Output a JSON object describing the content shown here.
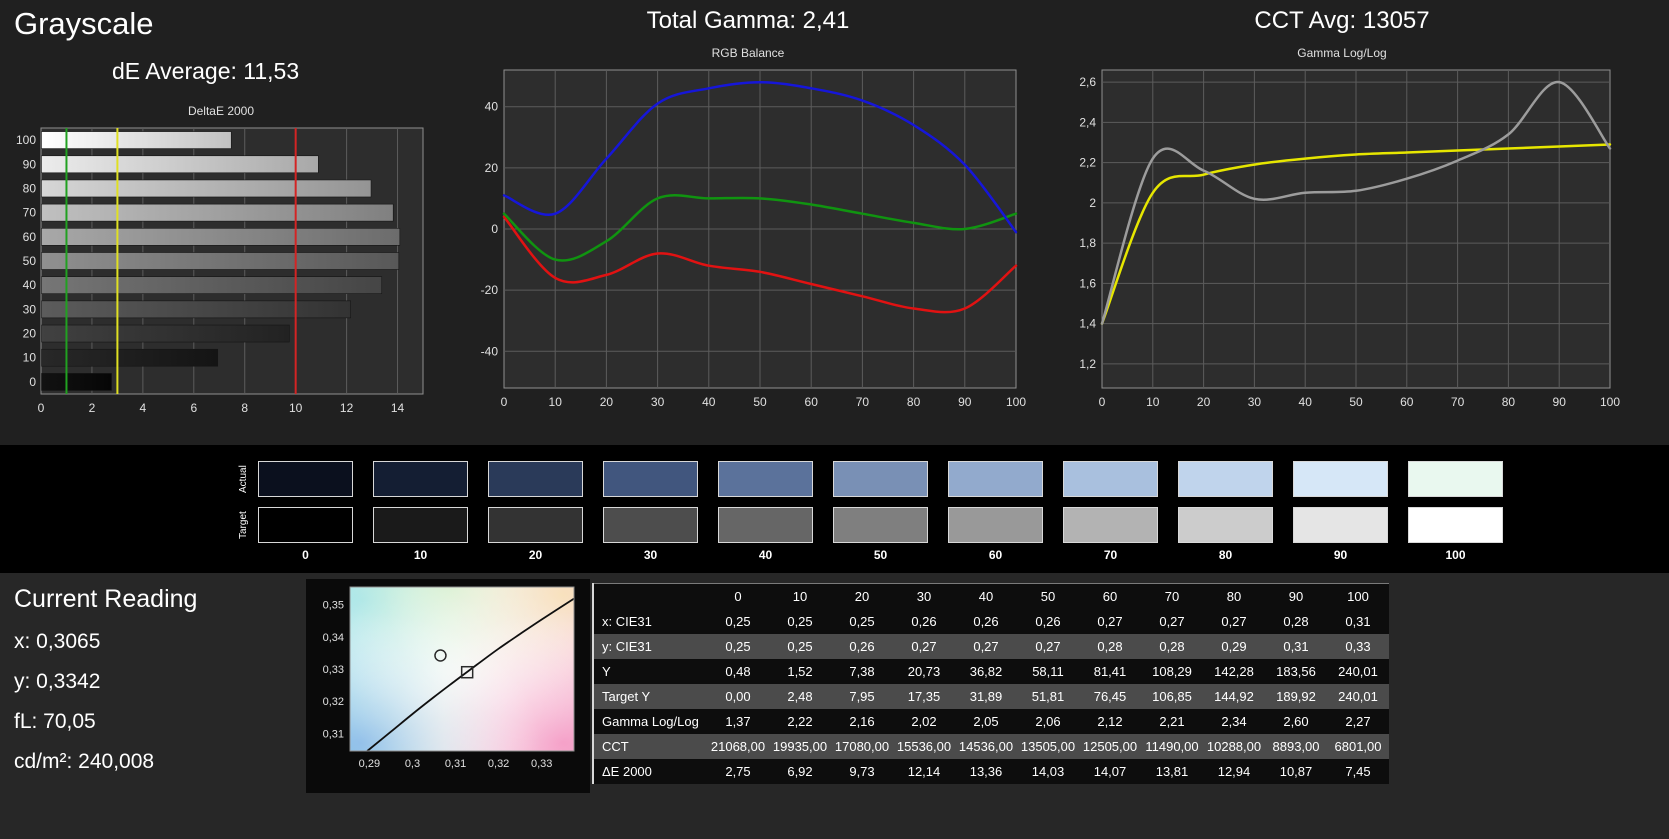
{
  "header": {
    "title": "Grayscale",
    "de_average": "dE Average: 11,53",
    "total_gamma": "Total Gamma: 2,41",
    "cct_avg": "CCT Avg: 13057"
  },
  "chart_data": [
    {
      "id": "deltae",
      "type": "bar",
      "orientation": "horizontal",
      "title": "DeltaE 2000",
      "categories": [
        "100",
        "90",
        "80",
        "70",
        "60",
        "50",
        "40",
        "30",
        "20",
        "10",
        "0"
      ],
      "values": [
        7.45,
        10.87,
        12.94,
        13.81,
        14.07,
        14.03,
        13.36,
        12.14,
        9.73,
        6.92,
        2.75
      ],
      "xlim": [
        0,
        15
      ],
      "x_ticks": [
        0,
        2,
        4,
        6,
        8,
        10,
        12,
        14
      ],
      "grid": true,
      "reference_lines": [
        {
          "x": 1,
          "color": "#21a121"
        },
        {
          "x": 3,
          "color": "#e0e022"
        },
        {
          "x": 10,
          "color": "#d32424"
        }
      ],
      "bar_gradients": [
        [
          "#ffffff",
          "#c2c2c2"
        ],
        [
          "#ececec",
          "#a8a8a8"
        ],
        [
          "#d6d6d6",
          "#949494"
        ],
        [
          "#c0c0c0",
          "#808080"
        ],
        [
          "#a8a8a8",
          "#6c6c6c"
        ],
        [
          "#909090",
          "#585858"
        ],
        [
          "#767676",
          "#454545"
        ],
        [
          "#5c5c5c",
          "#333333"
        ],
        [
          "#414141",
          "#222222"
        ],
        [
          "#282828",
          "#141414"
        ],
        [
          "#121212",
          "#060606"
        ]
      ]
    },
    {
      "id": "rgb_balance",
      "type": "line",
      "title": "RGB Balance",
      "x": [
        0,
        10,
        20,
        30,
        40,
        50,
        60,
        70,
        80,
        90,
        100
      ],
      "ylim": [
        -52,
        52
      ],
      "y_ticks": [
        -40,
        -20,
        0,
        20,
        40
      ],
      "y_tick_labels": [
        "-40",
        "-20",
        "0",
        "20",
        "40"
      ],
      "grid": true,
      "series": [
        {
          "name": "red",
          "color": "#e11212",
          "values": [
            4,
            -16,
            -15,
            -8,
            -12,
            -14,
            -18,
            -22,
            -26,
            -26,
            -12
          ]
        },
        {
          "name": "green",
          "color": "#109410",
          "values": [
            5,
            -10,
            -4,
            10,
            10,
            10,
            8,
            5,
            2,
            0,
            5
          ]
        },
        {
          "name": "blue",
          "color": "#1616d9",
          "values": [
            11,
            5,
            23,
            41,
            46,
            48,
            46,
            42,
            34,
            21,
            -1
          ]
        }
      ]
    },
    {
      "id": "gamma_loglog",
      "type": "line",
      "title": "Gamma Log/Log",
      "x": [
        0,
        10,
        20,
        30,
        40,
        50,
        60,
        70,
        80,
        90,
        100
      ],
      "ylim": [
        1.08,
        2.66
      ],
      "y_ticks": [
        1.2,
        1.4,
        1.6,
        1.8,
        2.0,
        2.2,
        2.4,
        2.6
      ],
      "y_tick_labels": [
        "1,2",
        "1,4",
        "1,6",
        "1,8",
        "2",
        "2,2",
        "2,4",
        "2,6"
      ],
      "grid": true,
      "series": [
        {
          "name": "target",
          "color": "#e6e600",
          "values": [
            1.4,
            2.05,
            2.14,
            2.19,
            2.22,
            2.24,
            2.25,
            2.26,
            2.27,
            2.28,
            2.29
          ]
        },
        {
          "name": "measured",
          "color": "#9c9c9c",
          "values": [
            1.4,
            2.22,
            2.16,
            2.02,
            2.05,
            2.06,
            2.12,
            2.21,
            2.34,
            2.6,
            2.27
          ]
        }
      ]
    },
    {
      "id": "cie_diagram",
      "type": "scatter",
      "title": "CIE chromaticity detail",
      "xlim": [
        0.2855,
        0.3375
      ],
      "ylim": [
        0.3045,
        0.3555
      ],
      "x_ticks": [
        0.29,
        0.3,
        0.31,
        0.32,
        0.33
      ],
      "x_tick_labels": [
        "0,29",
        "0,3",
        "0,31",
        "0,32",
        "0,33"
      ],
      "y_ticks": [
        0.31,
        0.32,
        0.33,
        0.34,
        0.35
      ],
      "y_tick_labels": [
        "0,31",
        "0,32",
        "0,33",
        "0,34",
        "0,35"
      ],
      "markers": [
        {
          "shape": "circle",
          "name": "measured-point",
          "x": 0.3065,
          "y": 0.3342
        },
        {
          "shape": "square",
          "name": "target-point",
          "x": 0.3127,
          "y": 0.329
        }
      ],
      "locus": [
        [
          0.2895,
          0.3045
        ],
        [
          0.295,
          0.3105
        ],
        [
          0.3,
          0.316
        ],
        [
          0.305,
          0.3213
        ],
        [
          0.31,
          0.3264
        ],
        [
          0.315,
          0.3314
        ],
        [
          0.32,
          0.3363
        ],
        [
          0.325,
          0.3409
        ],
        [
          0.33,
          0.3454
        ],
        [
          0.3375,
          0.3519
        ]
      ]
    }
  ],
  "swatches": {
    "actual_label": "Actual",
    "target_label": "Target",
    "levels": [
      "0",
      "10",
      "20",
      "30",
      "40",
      "50",
      "60",
      "70",
      "80",
      "90",
      "100"
    ],
    "actual_colors": [
      "#0b101e",
      "#141e33",
      "#2a3a59",
      "#41567e",
      "#5b729b",
      "#7990b5",
      "#92aacd",
      "#a9c0de",
      "#c0d4ec",
      "#d6e7f7",
      "#e9f8ef"
    ],
    "target_colors": [
      "#000000",
      "#1a1a1a",
      "#333333",
      "#4d4d4d",
      "#666666",
      "#7f7f7f",
      "#999999",
      "#b3b3b3",
      "#cccccc",
      "#e5e5e5",
      "#ffffff"
    ]
  },
  "current_reading": {
    "title": "Current Reading",
    "x": "x: 0,3065",
    "y": "y: 0,3342",
    "fl": "fL: 70,05",
    "cdm2": "cd/m²: 240,008"
  },
  "table": {
    "columns": [
      "",
      "0",
      "10",
      "20",
      "30",
      "40",
      "50",
      "60",
      "70",
      "80",
      "90",
      "100"
    ],
    "rows": [
      {
        "label": "x: CIE31",
        "shade": "dark",
        "values": [
          "0,25",
          "0,25",
          "0,25",
          "0,26",
          "0,26",
          "0,26",
          "0,27",
          "0,27",
          "0,27",
          "0,28",
          "0,31"
        ]
      },
      {
        "label": "y: CIE31",
        "shade": "light",
        "values": [
          "0,25",
          "0,25",
          "0,26",
          "0,27",
          "0,27",
          "0,27",
          "0,28",
          "0,28",
          "0,29",
          "0,31",
          "0,33"
        ]
      },
      {
        "label": "Y",
        "shade": "dark",
        "values": [
          "0,48",
          "1,52",
          "7,38",
          "20,73",
          "36,82",
          "58,11",
          "81,41",
          "108,29",
          "142,28",
          "183,56",
          "240,01"
        ]
      },
      {
        "label": "Target Y",
        "shade": "light",
        "values": [
          "0,00",
          "2,48",
          "7,95",
          "17,35",
          "31,89",
          "51,81",
          "76,45",
          "106,85",
          "144,92",
          "189,92",
          "240,01"
        ]
      },
      {
        "label": "Gamma Log/Log",
        "shade": "dark",
        "values": [
          "1,37",
          "2,22",
          "2,16",
          "2,02",
          "2,05",
          "2,06",
          "2,12",
          "2,21",
          "2,34",
          "2,60",
          "2,27"
        ]
      },
      {
        "label": "CCT",
        "shade": "light",
        "values": [
          "21068,00",
          "19935,00",
          "17080,00",
          "15536,00",
          "14536,00",
          "13505,00",
          "12505,00",
          "11490,00",
          "10288,00",
          "8893,00",
          "6801,00"
        ]
      },
      {
        "label": "ΔE 2000",
        "shade": "dark",
        "values": [
          "2,75",
          "6,92",
          "9,73",
          "12,14",
          "13,36",
          "14,03",
          "14,07",
          "13,81",
          "12,94",
          "10,87",
          "7,45"
        ]
      }
    ]
  }
}
